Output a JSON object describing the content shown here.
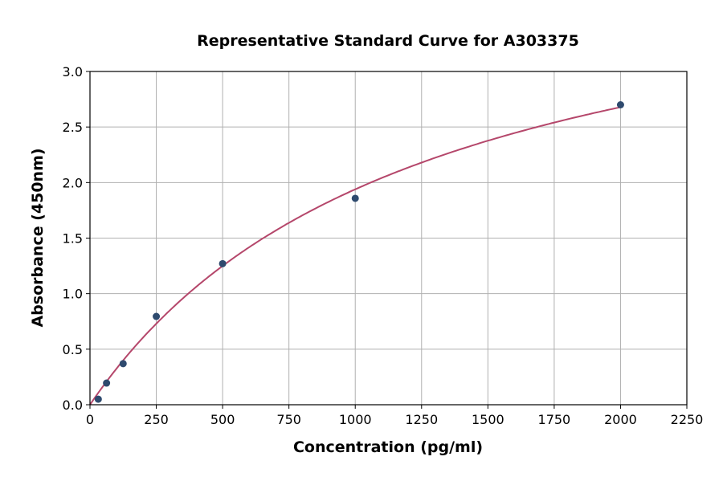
{
  "chart_data": {
    "type": "scatter",
    "title": "Representative Standard Curve for A303375",
    "xlabel": "Concentration (pg/ml)",
    "ylabel": "Absorbance (450nm)",
    "xlim": [
      0,
      2250
    ],
    "ylim": [
      0,
      3.0
    ],
    "xticks": [
      "0",
      "250",
      "500",
      "750",
      "1000",
      "1250",
      "1500",
      "1750",
      "2000",
      "2250"
    ],
    "yticks": [
      "0.0",
      "0.5",
      "1.0",
      "1.5",
      "2.0",
      "2.5",
      "3.0"
    ],
    "grid": true,
    "points": {
      "x": [
        31.25,
        62.5,
        125,
        250,
        500,
        1000,
        2000
      ],
      "y": [
        0.05,
        0.195,
        0.37,
        0.795,
        1.27,
        1.858,
        2.7
      ]
    },
    "fit_curve": {
      "type": "fitted",
      "color": "#b5476b"
    },
    "point_color": "#2e4a6e"
  }
}
